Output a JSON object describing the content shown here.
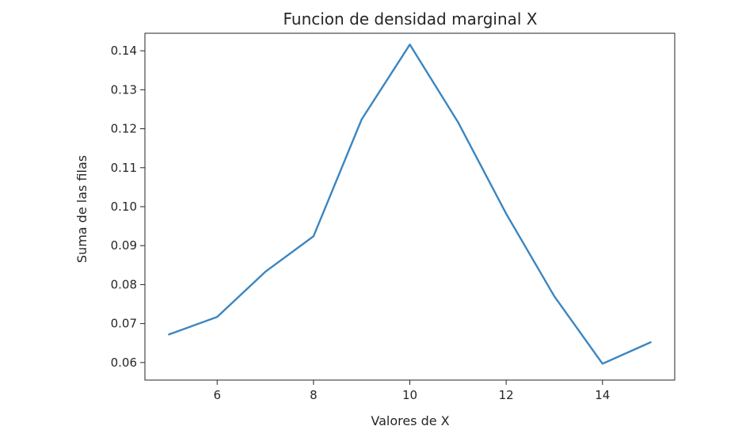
{
  "chart_data": {
    "type": "line",
    "title": "Funcion de densidad marginal X",
    "xlabel": "Valores de X",
    "ylabel": "Suma de las filas",
    "xlim": [
      4.5,
      15.5
    ],
    "ylim": [
      0.0555,
      0.1445
    ],
    "xticks": [
      6,
      8,
      10,
      12,
      14
    ],
    "xtick_labels": [
      "6",
      "8",
      "10",
      "12",
      "14"
    ],
    "yticks": [
      0.06,
      0.07,
      0.08,
      0.09,
      0.1,
      0.11,
      0.12,
      0.13,
      0.14
    ],
    "ytick_labels": [
      "0.06",
      "0.07",
      "0.08",
      "0.09",
      "0.10",
      "0.11",
      "0.12",
      "0.13",
      "0.14"
    ],
    "grid": false,
    "series": [
      {
        "color": "#3b86c1",
        "x": [
          5,
          6,
          7,
          8,
          9,
          10,
          11,
          12,
          13,
          14,
          15
        ],
        "y": [
          0.0672,
          0.0717,
          0.0833,
          0.0924,
          0.1224,
          0.1416,
          0.1217,
          0.0982,
          0.077,
          0.0597,
          0.0652
        ]
      }
    ]
  }
}
